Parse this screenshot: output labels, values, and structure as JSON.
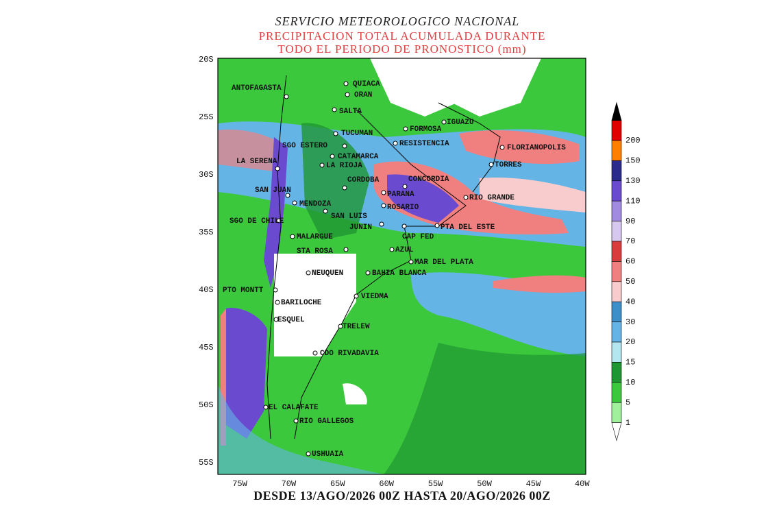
{
  "header": {
    "title": "SERVICIO METEOROLOGICO NACIONAL",
    "subtitle_lines": [
      "PRECIPITACION TOTAL ACUMULADA DURANTE",
      "TODO EL PERIODO DE PRONOSTICO (mm)"
    ]
  },
  "map": {
    "lat_labels": [
      "20S",
      "25S",
      "30S",
      "35S",
      "40S",
      "45S",
      "50S",
      "55S"
    ],
    "lon_labels": [
      "75W",
      "70W",
      "65W",
      "60W",
      "55W",
      "50W",
      "45W",
      "40W"
    ],
    "cities": [
      "ANTOFAGASTA",
      "QUIACA",
      "ORAN",
      "SALTA",
      "TUCUMAN",
      "SGO ESTERO",
      "CATAMARCA",
      "LA RIOJA",
      "LA SERENA",
      "CORDOBA",
      "SAN JUAN",
      "MENDOZA",
      "SAN LUIS",
      "SGO DE CHILE",
      "JUNIN",
      "MALARGUE",
      "STA ROSA",
      "NEUQUEN",
      "BAHIA BLANCA",
      "VIEDMA",
      "PTO MONTT",
      "BARILOCHE",
      "ESQUEL",
      "TRELEW",
      "CDO RIVADAVIA",
      "EL CALAFATE",
      "RIO GALLEGOS",
      "USHUAIA",
      "FORMOSA",
      "IGUAZU",
      "RESISTENCIA",
      "FLORIANOPOLIS",
      "TORRES",
      "CONCORDIA",
      "PARANA",
      "ROSARIO",
      "RIO GRANDE",
      "PTA DEL ESTE",
      "CAP FED",
      "AZUL",
      "MAR DEL PLATA"
    ]
  },
  "colorbar": {
    "levels": [
      200,
      150,
      130,
      110,
      90,
      70,
      60,
      50,
      40,
      30,
      20,
      15,
      10,
      5,
      1
    ],
    "colors": [
      "#e00000",
      "#ff7f00",
      "#2b2b8c",
      "#6a4bd0",
      "#a08be0",
      "#d7c8f0",
      "#d83c3c",
      "#f08080",
      "#f8cccc",
      "#3c8fc8",
      "#64b4e6",
      "#b4e6f0",
      "#1e9632",
      "#3cc83c",
      "#a0f09c"
    ],
    "top_color": "#000000",
    "bottom_color": "#ffffff"
  },
  "footer": "DESDE 13/AGO/2026 00Z HASTA 20/AGO/2026 00Z"
}
